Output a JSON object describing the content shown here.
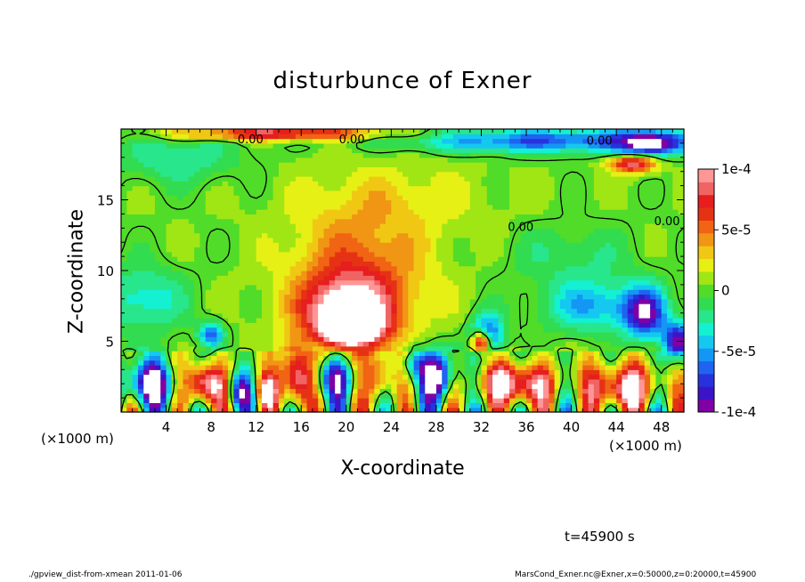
{
  "chart_data": {
    "type": "heatmap",
    "title": "disturbunce of Exner",
    "xlabel": "X-coordinate",
    "ylabel": "Z-coordinate",
    "x_unit": "(×1000 m)",
    "y_unit": "(×1000 m)",
    "xlim": [
      0,
      50
    ],
    "ylim": [
      0,
      20
    ],
    "x_ticks": [
      4,
      8,
      12,
      16,
      20,
      24,
      28,
      32,
      36,
      40,
      44,
      48
    ],
    "y_ticks": [
      5,
      10,
      15
    ],
    "colorbar": {
      "range": [
        -0.0001,
        0.0001
      ],
      "tick_values": [
        0.0001,
        5e-05,
        0,
        -5e-05,
        -0.0001
      ],
      "tick_labels": [
        "1e-4",
        "5e-5",
        "0",
        "-5e-5",
        "-1e-4"
      ],
      "colors": [
        "#7f00a5",
        "#3c14c8",
        "#2832dc",
        "#1e64f0",
        "#1496f5",
        "#14c8f0",
        "#14f0d2",
        "#28e68c",
        "#32dc50",
        "#50dc28",
        "#a0e614",
        "#e6f014",
        "#f0c814",
        "#f09614",
        "#f06414",
        "#e63214",
        "#e61e1e",
        "#f06464",
        "#ff9696"
      ]
    },
    "contour_labels": [
      "0.00",
      "0.00",
      "0.00",
      "0.00",
      "0.00"
    ],
    "blobs": [
      {
        "x": 21,
        "z": 9,
        "rx": 6.5,
        "rz": 5,
        "v": 6e-05
      },
      {
        "x": 20,
        "z": 7,
        "rx": 4,
        "rz": 2.5,
        "v": 9e-05
      },
      {
        "x": 20.5,
        "z": 6,
        "rx": 2.5,
        "rz": 1.2,
        "v": 0.00013
      },
      {
        "x": 24,
        "z": 15,
        "rx": 9,
        "rz": 3,
        "v": 2e-05
      },
      {
        "x": 15.5,
        "z": 2.5,
        "rx": 1.4,
        "rz": 2.2,
        "v": 0.00011
      },
      {
        "x": 19,
        "z": 2.5,
        "rx": 1.8,
        "rz": 1.8,
        "v": -9e-05
      },
      {
        "x": 23,
        "z": 2.5,
        "rx": 1.4,
        "rz": 1.8,
        "v": 6e-05
      },
      {
        "x": 26,
        "z": 3.5,
        "rx": 1.2,
        "rz": 1.2,
        "v": -6e-05
      },
      {
        "x": 28,
        "z": 2.5,
        "rx": 1.8,
        "rz": 2.0,
        "v": -0.00011
      },
      {
        "x": 32.5,
        "z": 5.5,
        "rx": 1.6,
        "rz": 1.6,
        "v": -8e-05
      },
      {
        "x": 32,
        "z": 5.0,
        "rx": 0.9,
        "rz": 0.9,
        "v": 0.00012
      },
      {
        "x": 35,
        "z": 2.0,
        "rx": 3.5,
        "rz": 1.6,
        "v": 0.00011
      },
      {
        "x": 44.5,
        "z": 1.8,
        "rx": 3.5,
        "rz": 1.8,
        "v": 0.0001
      },
      {
        "x": 46.5,
        "z": 7.0,
        "rx": 2.0,
        "rz": 2.0,
        "v": -9e-05
      },
      {
        "x": 42,
        "z": 7.5,
        "rx": 5,
        "rz": 2.0,
        "v": -5e-05
      },
      {
        "x": 49.5,
        "z": 5.0,
        "rx": 1.5,
        "rz": 1.5,
        "v": -0.0001
      },
      {
        "x": 2.5,
        "z": 2.0,
        "rx": 2.5,
        "rz": 1.8,
        "v": -0.00011
      },
      {
        "x": 7.5,
        "z": 2.0,
        "rx": 1.8,
        "rz": 1.6,
        "v": 0.00012
      },
      {
        "x": 10.5,
        "z": 1.5,
        "rx": 1.2,
        "rz": 1.4,
        "v": -8e-05
      },
      {
        "x": 13,
        "z": 1.5,
        "rx": 1.0,
        "rz": 1.3,
        "v": 9e-05
      },
      {
        "x": 8,
        "z": 5.5,
        "rx": 1.2,
        "rz": 1.0,
        "v": -7e-05
      },
      {
        "x": 2,
        "z": 8,
        "rx": 4,
        "rz": 2.5,
        "v": -4e-05
      },
      {
        "x": 38,
        "z": 19.2,
        "rx": 14,
        "rz": 0.9,
        "v": -7e-05
      },
      {
        "x": 47,
        "z": 19,
        "rx": 3,
        "rz": 1.0,
        "v": -9e-05
      },
      {
        "x": 45.5,
        "z": 17.6,
        "rx": 2.2,
        "rz": 0.7,
        "v": 9e-05
      },
      {
        "x": 14,
        "z": 19.7,
        "rx": 10,
        "rz": 0.5,
        "v": 8e-05
      },
      {
        "x": 5,
        "z": 18,
        "rx": 6,
        "rz": 2.0,
        "v": -3e-05
      },
      {
        "x": 40,
        "z": 11,
        "rx": 6,
        "rz": 2.5,
        "v": -2e-05
      }
    ]
  },
  "annotations": {
    "x_unit_left": "(×1000 m)",
    "x_unit_right": "(×1000 m)",
    "time": "t=45900 s",
    "footer_left": "./gpview_dist-from-xmean  2011-01-06",
    "footer_right": "MarsCond_Exner.nc@Exner,x=0:50000,z=0:20000,t=45900"
  }
}
